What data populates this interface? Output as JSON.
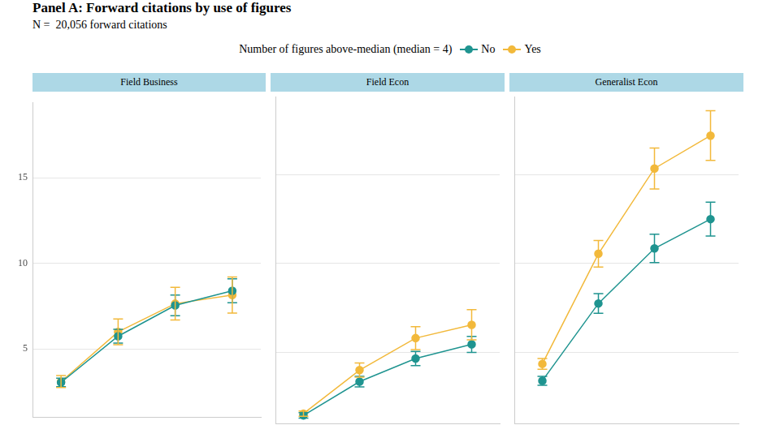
{
  "header": {
    "title": "Panel A: Forward citations by use of figures",
    "subtitle": "N =  20,056 forward citations",
    "legend_title": "Number of figures above-median (median = 4)",
    "legend": "top"
  },
  "chart_data": [
    {
      "type": "line",
      "title": "Field Business",
      "categories": [
        null,
        null,
        null,
        null
      ],
      "ylim": [
        1,
        19.4
      ],
      "yticks": [
        5,
        10,
        15
      ],
      "grid": true,
      "tick_labels": "y",
      "series": [
        {
          "name": "No",
          "color": "#1f9490",
          "values": [
            3.05,
            5.75,
            7.55,
            8.4
          ],
          "errors": [
            0.25,
            0.4,
            0.6,
            0.7
          ]
        },
        {
          "name": "Yes",
          "color": "#f2b93b",
          "values": [
            3.1,
            6.0,
            7.65,
            8.15
          ],
          "errors": [
            0.35,
            0.75,
            0.95,
            1.05
          ]
        }
      ]
    },
    {
      "type": "line",
      "title": "Field Econ",
      "categories": [
        null,
        null,
        null,
        null
      ],
      "ylim": [
        1,
        19.4
      ],
      "yticks": [
        5,
        10,
        15
      ],
      "grid": true,
      "tick_labels": false,
      "series": [
        {
          "name": "No",
          "color": "#1f9490",
          "values": [
            1.45,
            3.35,
            4.65,
            5.45
          ],
          "errors": [
            0.15,
            0.3,
            0.4,
            0.45
          ]
        },
        {
          "name": "Yes",
          "color": "#f2b93b",
          "values": [
            1.55,
            4.0,
            5.8,
            6.55
          ],
          "errors": [
            0.15,
            0.4,
            0.65,
            0.85
          ]
        }
      ]
    },
    {
      "type": "line",
      "title": "Generalist Econ",
      "categories": [
        null,
        null,
        null,
        null
      ],
      "ylim": [
        1,
        19.4
      ],
      "yticks": [
        5,
        10,
        15
      ],
      "grid": true,
      "tick_labels": false,
      "series": [
        {
          "name": "No",
          "color": "#1f9490",
          "values": [
            3.4,
            7.75,
            10.85,
            12.5
          ],
          "errors": [
            0.25,
            0.55,
            0.8,
            0.95
          ]
        },
        {
          "name": "Yes",
          "color": "#f2b93b",
          "values": [
            4.35,
            10.55,
            15.35,
            17.2
          ],
          "errors": [
            0.3,
            0.75,
            1.15,
            1.4
          ]
        }
      ]
    }
  ]
}
